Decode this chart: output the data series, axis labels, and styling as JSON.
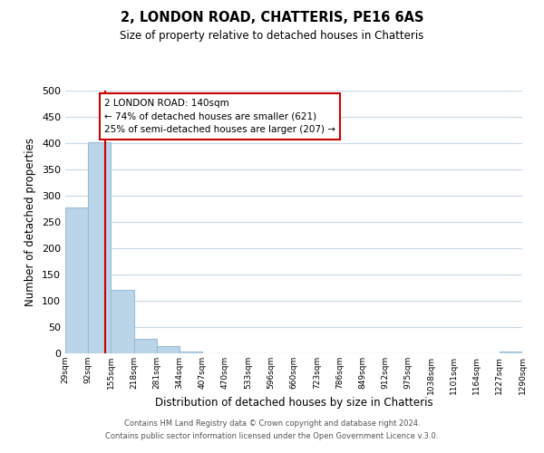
{
  "title": "2, LONDON ROAD, CHATTERIS, PE16 6AS",
  "subtitle": "Size of property relative to detached houses in Chatteris",
  "xlabel": "Distribution of detached houses by size in Chatteris",
  "ylabel": "Number of detached properties",
  "bar_values": [
    277,
    401,
    120,
    27,
    14,
    3,
    0,
    0,
    0,
    0,
    0,
    0,
    0,
    0,
    0,
    0,
    0,
    0,
    0,
    3
  ],
  "bin_edges": [
    29,
    92,
    155,
    218,
    281,
    344,
    407,
    470,
    533,
    596,
    660,
    723,
    786,
    849,
    912,
    975,
    1038,
    1101,
    1164,
    1227,
    1290
  ],
  "bar_color": "#bad4e8",
  "bar_edge_color": "#9bbcd6",
  "property_line_x": 140,
  "property_line_color": "#cc0000",
  "ylim": [
    0,
    500
  ],
  "yticks": [
    0,
    50,
    100,
    150,
    200,
    250,
    300,
    350,
    400,
    450,
    500
  ],
  "annotation_title": "2 LONDON ROAD: 140sqm",
  "annotation_line1": "← 74% of detached houses are smaller (621)",
  "annotation_line2": "25% of semi-detached houses are larger (207) →",
  "annotation_box_facecolor": "#ffffff",
  "annotation_box_edgecolor": "#cc0000",
  "footnote1": "Contains HM Land Registry data © Crown copyright and database right 2024.",
  "footnote2": "Contains public sector information licensed under the Open Government Licence v.3.0.",
  "background_color": "#ffffff",
  "grid_color": "#c8d8e8",
  "tick_labels": [
    "29sqm",
    "92sqm",
    "155sqm",
    "218sqm",
    "281sqm",
    "344sqm",
    "407sqm",
    "470sqm",
    "533sqm",
    "596sqm",
    "660sqm",
    "723sqm",
    "786sqm",
    "849sqm",
    "912sqm",
    "975sqm",
    "1038sqm",
    "1101sqm",
    "1164sqm",
    "1227sqm",
    "1290sqm"
  ]
}
